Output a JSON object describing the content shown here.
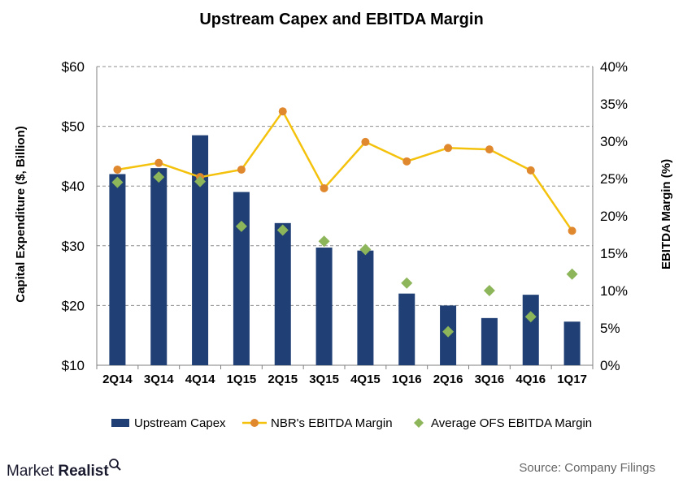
{
  "chart_data": {
    "type": "bar",
    "title": "Upstream  Capex and EBITDA Margin",
    "categories": [
      "2Q14",
      "3Q14",
      "4Q14",
      "1Q15",
      "2Q15",
      "3Q15",
      "4Q15",
      "1Q16",
      "2Q16",
      "3Q16",
      "4Q16",
      "1Q17"
    ],
    "ylabel": "Capital Expenditure ($, Billion)",
    "y2label": "EBITDA Margin (%)",
    "ylim": [
      10,
      60
    ],
    "y2lim": [
      0,
      40
    ],
    "yticks": [
      "$10",
      "$20",
      "$30",
      "$40",
      "$50",
      "$60"
    ],
    "y2ticks": [
      "0%",
      "5%",
      "10%",
      "15%",
      "20%",
      "25%",
      "30%",
      "35%",
      "40%"
    ],
    "grid": true,
    "legend_position": "bottom",
    "series": [
      {
        "name": "Upstream Capex",
        "type": "bar",
        "axis": "left",
        "color": "#1f3f75",
        "values": [
          42,
          43,
          48.5,
          39,
          33.8,
          29.7,
          29.2,
          22,
          20,
          17.9,
          21.8,
          17.3
        ]
      },
      {
        "name": "NBR's EBITDA Margin",
        "type": "line",
        "axis": "right",
        "color": "#f4c20d",
        "marker_color": "#e0882e",
        "values": [
          26.2,
          27.1,
          25.2,
          26.2,
          34,
          23.7,
          29.9,
          27.3,
          29.1,
          28.9,
          26.1,
          18
        ]
      },
      {
        "name": "Average OFS EBITDA Margin",
        "type": "scatter",
        "axis": "right",
        "color": "#8db55a",
        "values": [
          24.5,
          25.2,
          24.6,
          18.6,
          18.1,
          16.6,
          15.5,
          11,
          4.5,
          10,
          6.5,
          12.2
        ]
      }
    ]
  },
  "brand": {
    "name_part1": "Market",
    "name_part2": "Realist"
  },
  "source": "Source: Company Filings"
}
